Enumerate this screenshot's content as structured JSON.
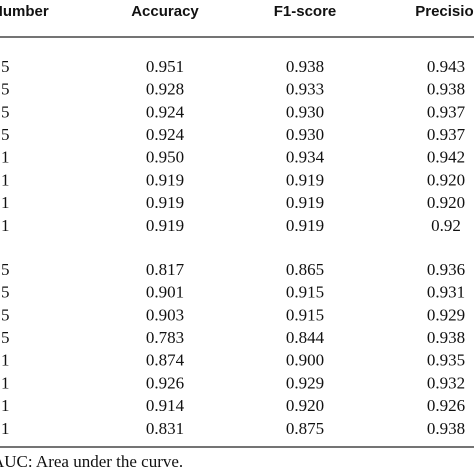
{
  "table": {
    "header": [
      "Number",
      "Accuracy",
      "F1-score",
      "Precision"
    ],
    "groups": [
      [
        [
          "5",
          "0.951",
          "0.938",
          "0.943"
        ],
        [
          "5",
          "0.928",
          "0.933",
          "0.938"
        ],
        [
          "5",
          "0.924",
          "0.930",
          "0.937"
        ],
        [
          "5",
          "0.924",
          "0.930",
          "0.937"
        ],
        [
          "1",
          "0.950",
          "0.934",
          "0.942"
        ],
        [
          "1",
          "0.919",
          "0.919",
          "0.920"
        ],
        [
          "1",
          "0.919",
          "0.919",
          "0.920"
        ],
        [
          "1",
          "0.919",
          "0.919",
          "0.92"
        ]
      ],
      [
        [
          "5",
          "0.817",
          "0.865",
          "0.936"
        ],
        [
          "5",
          "0.901",
          "0.915",
          "0.931"
        ],
        [
          "5",
          "0.903",
          "0.915",
          "0.929"
        ],
        [
          "5",
          "0.783",
          "0.844",
          "0.938"
        ],
        [
          "1",
          "0.874",
          "0.900",
          "0.935"
        ],
        [
          "1",
          "0.926",
          "0.929",
          "0.932"
        ],
        [
          "1",
          "0.914",
          "0.920",
          "0.926"
        ],
        [
          "1",
          "0.831",
          "0.875",
          "0.938"
        ]
      ]
    ]
  },
  "footnote": "AUC: Area under the curve."
}
